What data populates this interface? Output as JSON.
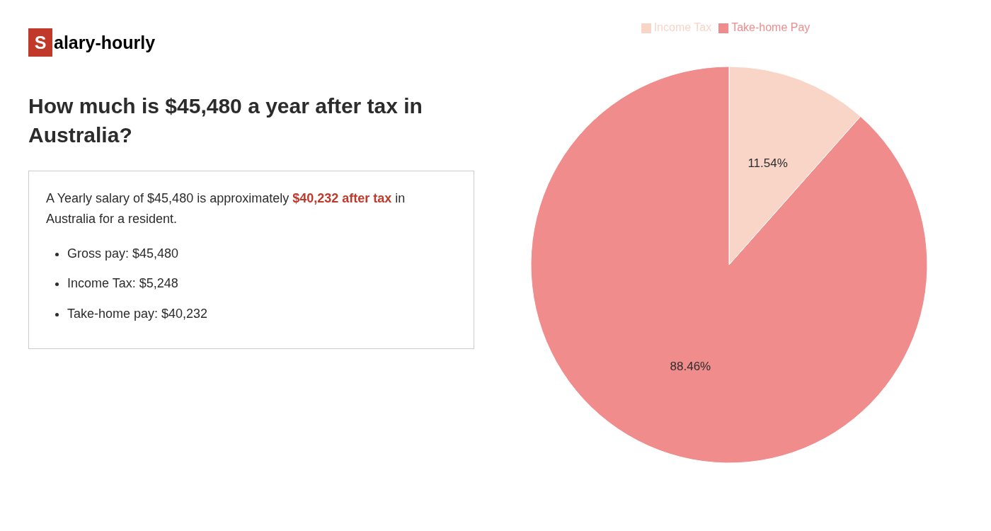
{
  "chart_data": {
    "type": "pie",
    "title": "How much is $45,480 a year after tax in Australia?",
    "categories": [
      "Income Tax",
      "Take-home Pay"
    ],
    "values": [
      11.54,
      88.46
    ],
    "value_labels": [
      "11.54%",
      "88.46%"
    ],
    "colors": [
      "#f9d5c8",
      "#f08c8c"
    ],
    "data_labels": true,
    "legend": "top",
    "annotations": [
      {
        "text": "S",
        "color": "#c0392b"
      },
      {
        "text": "alary-hourly"
      },
      {
        "text": "A Yearly salary of $45,480 is approximately "
      },
      {
        "text": "$40,232 after tax",
        "color": "#c0392b"
      },
      {
        "text": " in"
      },
      {
        "text": "Australia for a resident."
      },
      {
        "text": "Gross pay: $45,480"
      },
      {
        "text": "Income Tax: $5,248"
      },
      {
        "text": "Take-home pay: $40,232"
      }
    ]
  }
}
